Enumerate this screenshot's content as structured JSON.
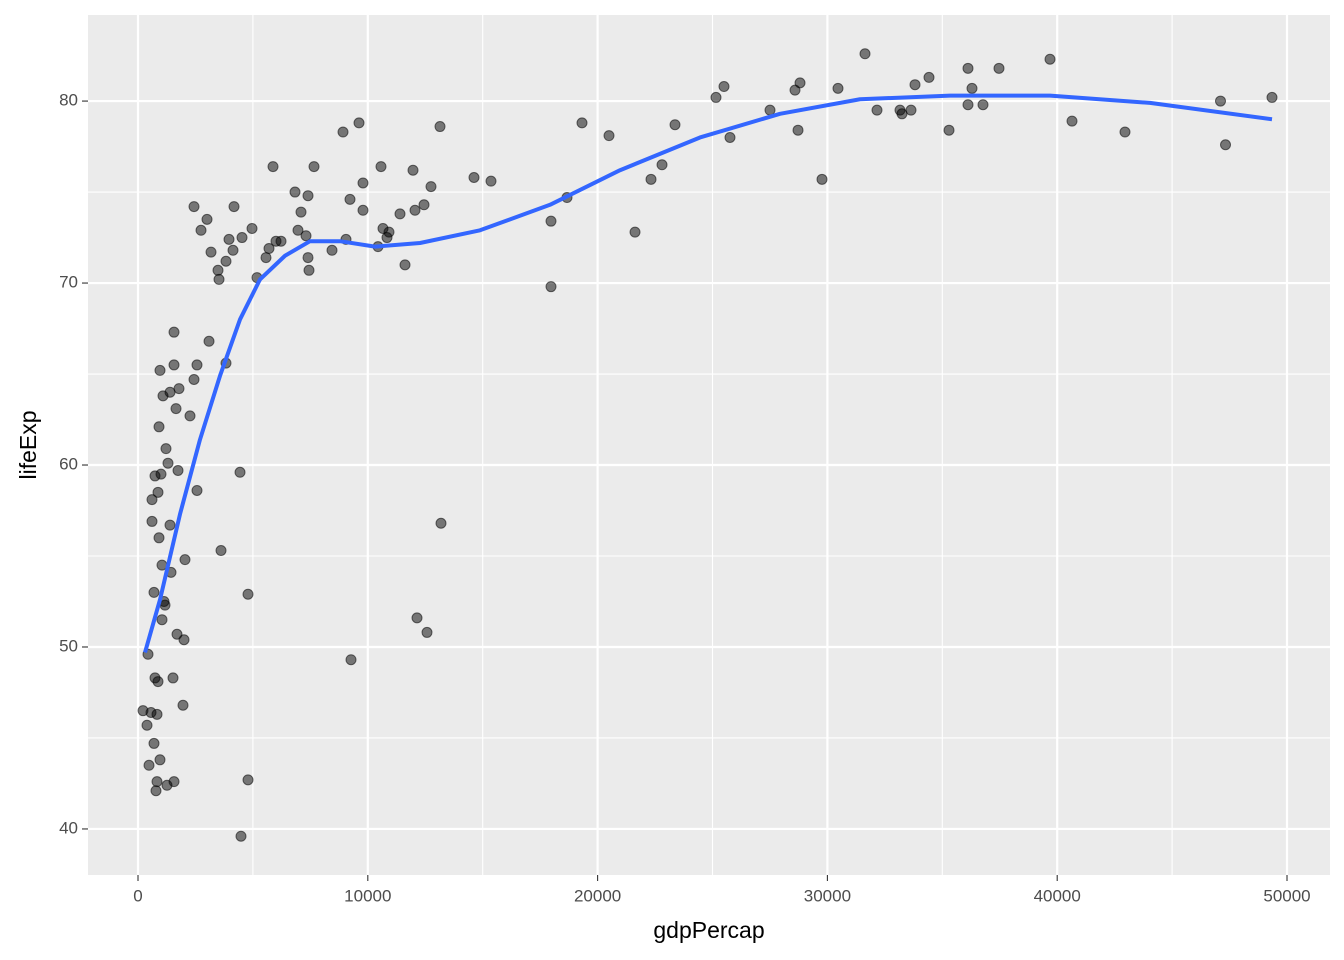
{
  "chart_data": {
    "type": "scatter",
    "x_label": "gdpPercap",
    "y_label": "lifeExp",
    "xlim": [
      -2176,
      51871
    ],
    "ylim": [
      37.47,
      84.73
    ],
    "xticks": [
      0,
      10000,
      20000,
      30000,
      40000,
      50000
    ],
    "yticks": [
      40,
      50,
      60,
      70,
      80
    ],
    "grid": true,
    "color": "#000000",
    "x": [
      218,
      392,
      435,
      479,
      566,
      609,
      609,
      696,
      696,
      740,
      740,
      783,
      827,
      827,
      870,
      870,
      914,
      914,
      957,
      957,
      1001,
      1044,
      1044,
      1088,
      1131,
      1175,
      1218,
      1262,
      1305,
      1393,
      1393,
      1436,
      1523,
      1567,
      1567,
      1567,
      1654,
      1697,
      1741,
      1784,
      1958,
      2002,
      2045,
      2263,
      2437,
      2437,
      2567,
      2567,
      2742,
      3003,
      3090,
      3177,
      3481,
      3525,
      3612,
      3829,
      3829,
      3960,
      4134,
      4178,
      4439,
      4482,
      4526,
      4787,
      4787,
      4961,
      5178,
      5570,
      5700,
      5875,
      6005,
      6223,
      6832,
      6962,
      7093,
      7311,
      7398,
      7398,
      7441,
      7659,
      8442,
      8921,
      9051,
      9225,
      9269,
      9617,
      9791,
      9791,
      10444,
      10574,
      10661,
      10835,
      10922,
      11401,
      11619,
      11967,
      12054,
      12141,
      12446,
      12576,
      12750,
      13142,
      13185,
      14621,
      15361,
      17972,
      17972,
      18668,
      19321,
      20496,
      21628,
      22324,
      22803,
      23368,
      25152,
      25500,
      25761,
      27502,
      28590,
      28721,
      28808,
      29765,
      30461,
      31636,
      32158,
      33159,
      33246,
      33638,
      33812,
      34421,
      35292,
      36118,
      36118,
      36292,
      36771,
      37467,
      39687,
      40644,
      42950,
      47106,
      47324,
      49347
    ],
    "y": [
      46.5,
      45.7,
      49.6,
      43.5,
      46.4,
      56.9,
      58.1,
      53.0,
      44.7,
      59.4,
      48.3,
      42.1,
      46.3,
      42.6,
      58.5,
      48.1,
      62.1,
      56.0,
      65.2,
      43.8,
      59.5,
      54.5,
      51.5,
      63.8,
      52.5,
      52.3,
      60.9,
      42.4,
      60.1,
      64.0,
      56.7,
      54.1,
      48.3,
      67.3,
      65.5,
      42.6,
      63.1,
      50.7,
      59.7,
      64.2,
      46.8,
      50.4,
      54.8,
      62.7,
      64.7,
      74.2,
      58.6,
      65.5,
      72.9,
      73.5,
      66.8,
      71.7,
      70.7,
      70.2,
      55.3,
      71.2,
      65.6,
      72.4,
      71.8,
      74.2,
      59.6,
      39.6,
      72.5,
      52.9,
      42.7,
      73.0,
      70.3,
      71.4,
      71.9,
      76.4,
      72.3,
      72.3,
      75.0,
      72.9,
      73.9,
      72.6,
      74.8,
      71.4,
      70.7,
      76.4,
      71.8,
      78.3,
      72.4,
      74.6,
      49.3,
      78.8,
      75.5,
      74.0,
      72.0,
      76.4,
      73.0,
      72.5,
      72.8,
      73.8,
      71.0,
      76.2,
      74.0,
      51.6,
      74.3,
      50.8,
      75.3,
      78.6,
      56.8,
      75.8,
      75.6,
      69.8,
      73.4,
      74.7,
      78.8,
      78.1,
      72.8,
      75.7,
      76.5,
      78.7,
      80.2,
      80.8,
      78.0,
      79.5,
      80.6,
      78.4,
      81.0,
      75.7,
      80.7,
      82.6,
      79.5,
      79.5,
      79.3,
      79.5,
      80.9,
      81.3,
      78.4,
      81.8,
      79.8,
      80.7,
      79.8,
      81.8,
      82.3,
      78.9,
      78.3,
      80.0,
      77.6,
      80.2
    ],
    "smooth": {
      "color": "#3366ff",
      "x": [
        305,
        957,
        1828,
        2698,
        3568,
        4439,
        5309,
        6397,
        7485,
        8790,
        10313,
        12272,
        14883,
        17929,
        20975,
        24456,
        27937,
        31418,
        35335,
        39687,
        44038,
        49347
      ],
      "y": [
        49.7,
        52.6,
        57.3,
        61.4,
        64.9,
        68.0,
        70.2,
        71.5,
        72.3,
        72.3,
        72.0,
        72.2,
        72.9,
        74.3,
        76.2,
        78.0,
        79.3,
        80.1,
        80.3,
        80.3,
        79.9,
        79.0
      ]
    }
  }
}
